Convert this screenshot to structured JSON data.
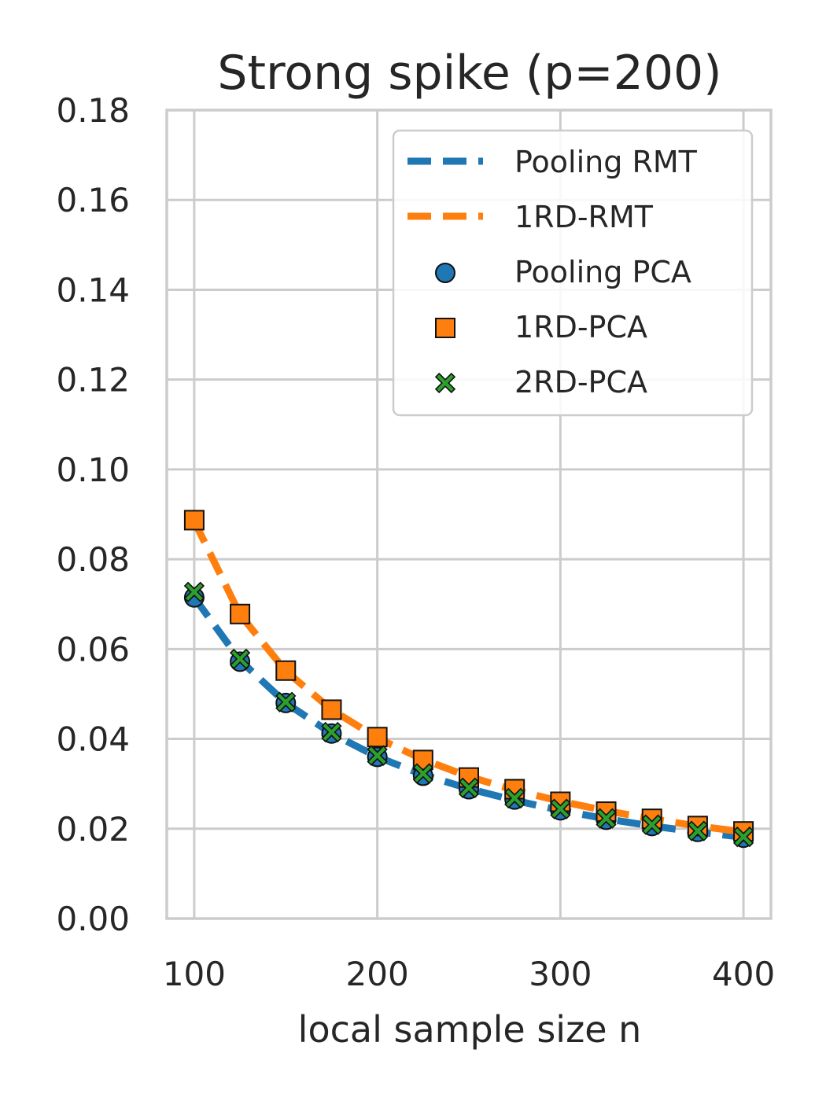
{
  "chart_data": {
    "type": "line",
    "title": "Strong spike (p=200)",
    "xlabel": "local sample size n",
    "ylabel": "",
    "xlim": [
      85,
      415
    ],
    "ylim": [
      0,
      0.18
    ],
    "xticks": [
      100,
      200,
      300,
      400
    ],
    "xtick_labels": [
      "100",
      "200",
      "300",
      "400"
    ],
    "yticks": [
      0,
      0.02,
      0.04,
      0.06,
      0.08,
      0.1,
      0.12,
      0.14,
      0.16,
      0.18
    ],
    "ytick_labels": [
      "0.00",
      "0.02",
      "0.04",
      "0.06",
      "0.08",
      "0.10",
      "0.12",
      "0.14",
      "0.16",
      "0.18"
    ],
    "grid": true,
    "legend_position": "top-right",
    "x": [
      100,
      125,
      150,
      175,
      200,
      225,
      250,
      275,
      300,
      325,
      350,
      375,
      400
    ],
    "series": [
      {
        "name": "Pooling RMT",
        "kind": "line",
        "style": "dashed",
        "color": "#1f77b4",
        "values": [
          0.0715,
          0.0575,
          0.048,
          0.0412,
          0.036,
          0.032,
          0.0289,
          0.0263,
          0.0241,
          0.0222,
          0.0206,
          0.0193,
          0.0181
        ]
      },
      {
        "name": "1RD-RMT",
        "kind": "line",
        "style": "dashed",
        "color": "#ff7f0e",
        "values": [
          0.0885,
          0.0677,
          0.0551,
          0.0465,
          0.0402,
          0.0354,
          0.0316,
          0.0286,
          0.0261,
          0.024,
          0.0222,
          0.0206,
          0.0193
        ]
      },
      {
        "name": "Pooling PCA",
        "kind": "scatter",
        "marker": "circle",
        "color": "#1f77b4",
        "values": [
          0.0715,
          0.0572,
          0.048,
          0.0412,
          0.036,
          0.0318,
          0.0288,
          0.0265,
          0.0241,
          0.022,
          0.0206,
          0.0193,
          0.018
        ]
      },
      {
        "name": "1RD-PCA",
        "kind": "scatter",
        "marker": "square",
        "color": "#ff7f0e",
        "values": [
          0.0887,
          0.0678,
          0.0552,
          0.0465,
          0.0404,
          0.0353,
          0.0314,
          0.0288,
          0.026,
          0.0238,
          0.0222,
          0.0206,
          0.0194
        ]
      },
      {
        "name": "2RD-PCA",
        "kind": "scatter",
        "marker": "x",
        "color": "#2ca02c",
        "values": [
          0.0727,
          0.0578,
          0.0482,
          0.0415,
          0.0363,
          0.0323,
          0.0291,
          0.0268,
          0.0244,
          0.0223,
          0.0209,
          0.0195,
          0.0182
        ]
      }
    ]
  }
}
